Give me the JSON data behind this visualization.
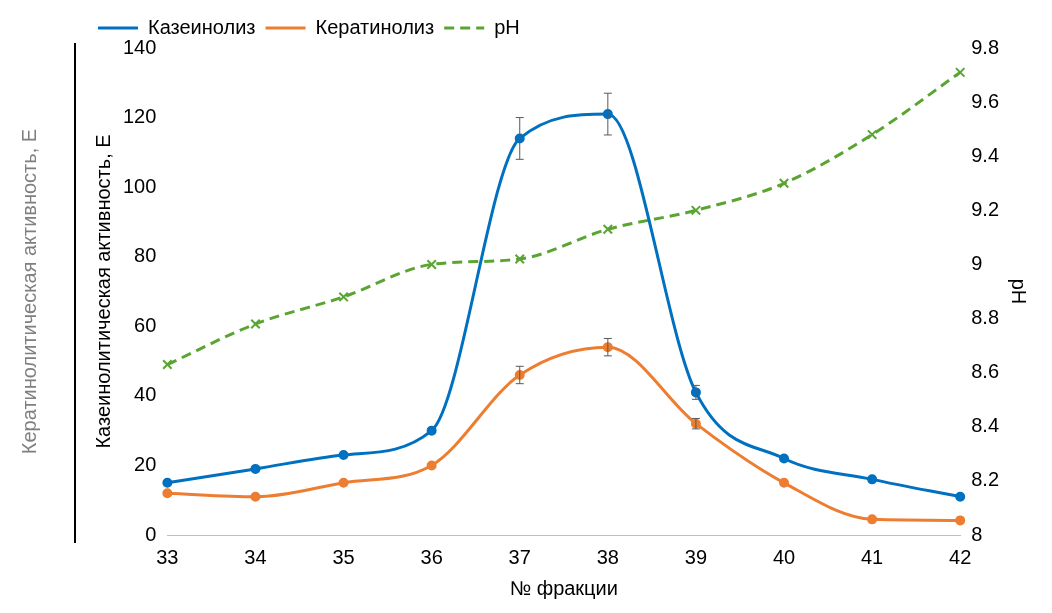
{
  "chart_data": {
    "type": "line",
    "xlabel": "№ фракции",
    "ylabel": "Казеинолитическая активность, Е",
    "y2label": "pH",
    "annotations": [
      "Кератинолитическая активность, Е"
    ],
    "categories": [
      "33",
      "34",
      "35",
      "36",
      "37",
      "38",
      "39",
      "40",
      "41",
      "42"
    ],
    "series": [
      {
        "name": "Казеинолиз",
        "color": "#0070c0",
        "values": [
          15,
          19,
          23,
          30,
          114,
          121,
          41,
          22,
          16,
          11
        ],
        "errors": [
          null,
          null,
          null,
          null,
          6,
          6,
          2,
          null,
          null,
          null
        ],
        "marker": "circle",
        "line_style": "solid"
      },
      {
        "name": "Кератинолиз",
        "color": "#ed7d31",
        "values": [
          12,
          11,
          15,
          20,
          46,
          54,
          32,
          15,
          4.5,
          4.2
        ],
        "errors": [
          null,
          null,
          null,
          null,
          2.5,
          2.5,
          1.5,
          null,
          null,
          null
        ],
        "marker": "circle",
        "line_style": "solid"
      },
      {
        "name": "pH",
        "color": "#5aa532",
        "type": "line",
        "axis": "y2",
        "values": [
          8.63,
          8.78,
          8.88,
          9.0,
          9.02,
          9.13,
          9.2,
          9.3,
          9.48,
          9.71
        ],
        "marker": "cross",
        "line_style": "dashed"
      }
    ],
    "ylim": [
      0,
      140
    ],
    "yticks": [
      0,
      20,
      40,
      60,
      80,
      100,
      120,
      140
    ],
    "y2lim": [
      8,
      9.8
    ],
    "y2ticks": [
      8,
      8.2,
      8.4,
      8.6,
      8.8,
      9,
      9.2,
      9.4,
      9.6,
      9.8
    ],
    "grid": false,
    "legend": "top left"
  }
}
